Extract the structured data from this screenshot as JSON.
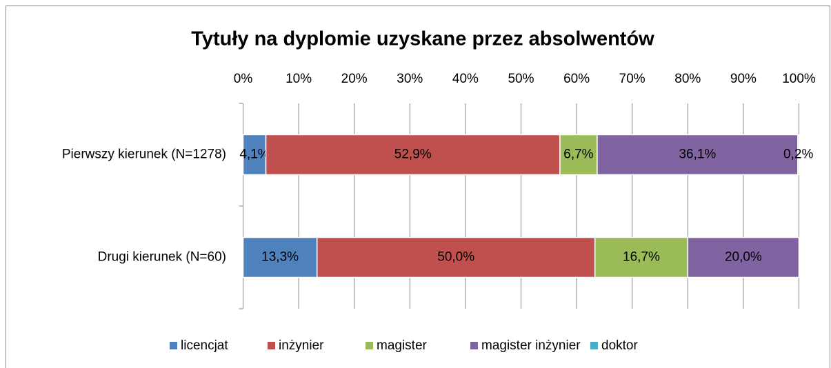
{
  "chart_data": {
    "type": "stacked_bar_horizontal",
    "title": "Tytuły na dyplomie uzyskane przez absolwentów",
    "categories": [
      "Pierwszy kierunek (N=1278)",
      "Drugi kierunek (N=60)"
    ],
    "series": [
      {
        "name": "licencjat",
        "color": "#4f81bd",
        "values": [
          4.1,
          13.3
        ],
        "value_labels": [
          "4,1%",
          "13,3%"
        ]
      },
      {
        "name": "inżynier",
        "color": "#c0504d",
        "values": [
          52.9,
          50.0
        ],
        "value_labels": [
          "52,9%",
          "50,0%"
        ]
      },
      {
        "name": "magister",
        "color": "#9bbb59",
        "values": [
          6.7,
          16.7
        ],
        "value_labels": [
          "6,7%",
          "16,7%"
        ]
      },
      {
        "name": "magister inżynier",
        "color": "#8064a2",
        "values": [
          36.1,
          20.0
        ],
        "value_labels": [
          "36,1%",
          "20,0%"
        ]
      },
      {
        "name": "doktor",
        "color": "#4bacc6",
        "values": [
          0.2,
          0
        ],
        "value_labels": [
          "0,2%",
          null
        ]
      }
    ],
    "xlim": [
      0,
      100
    ],
    "xticks": [
      {
        "value": 0,
        "label": "0%"
      },
      {
        "value": 10,
        "label": "10%"
      },
      {
        "value": 20,
        "label": "20%"
      },
      {
        "value": 30,
        "label": "30%"
      },
      {
        "value": 40,
        "label": "40%"
      },
      {
        "value": 50,
        "label": "50%"
      },
      {
        "value": 60,
        "label": "60%"
      },
      {
        "value": 70,
        "label": "70%"
      },
      {
        "value": 80,
        "label": "80%"
      },
      {
        "value": 90,
        "label": "90%"
      },
      {
        "value": 100,
        "label": "100%"
      }
    ],
    "grid": true,
    "legend": "bottom"
  }
}
